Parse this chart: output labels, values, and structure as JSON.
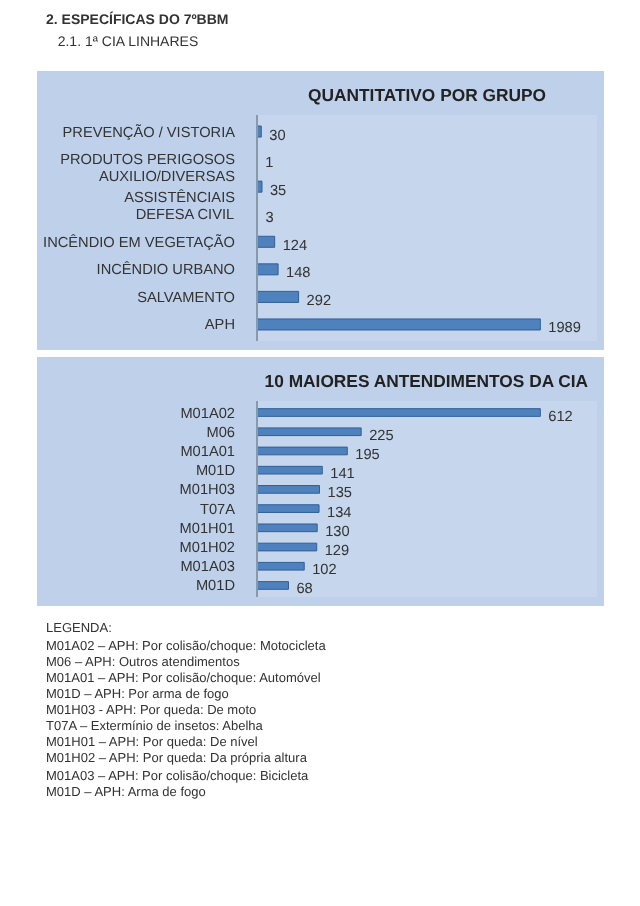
{
  "chart_data": [
    {
      "type": "bar",
      "orientation": "horizontal",
      "title": "QUANTITATIVO POR GRUPO",
      "categories": [
        "PREVENÇÃO / VISTORIA",
        "PRODUTOS PERIGOSOS",
        "AUXILIO/DIVERSAS ASSISTÊNCIAIS",
        "DEFESA CIVIL",
        "INCÊNDIO EM VEGETAÇÃO",
        "INCÊNDIO URBANO",
        "SALVAMENTO",
        "APH"
      ],
      "values": [
        30,
        1,
        35,
        3,
        124,
        148,
        292,
        1989
      ],
      "color": "#4f81bd",
      "data_labels": true,
      "annotations": [
        "2. ESPECÍFICAS DO 7ºBBM",
        "2.1. 1ª CIA LINHARES"
      ]
    },
    {
      "type": "bar",
      "orientation": "horizontal",
      "title": "10 MAIORES ANTENDIMENTOS DA CIA",
      "categories": [
        "M01A02",
        "M06",
        "M01A01",
        "M01D",
        "M01H03",
        "T07A",
        "M01H01",
        "M01H02",
        "M01A03",
        "M01D"
      ],
      "values": [
        612,
        225,
        195,
        141,
        135,
        134,
        130,
        129,
        102,
        68
      ],
      "color": "#4f81bd",
      "data_labels": true,
      "annotations": [
        "LEGENDA:",
        "M01A02 – APH: Por colisão/choque: Motocicleta",
        "M06 – APH: Outros atendimentos",
        "M01A01 – APH: Por colisão/choque: Automóvel",
        "M01D – APH: Por arma de fogo",
        "M01H03 - APH: Por queda: De moto",
        "T07A – Extermínio de insetos: Abelha",
        "M01H01 – APH: Por queda: De nível",
        "M01H02 – APH: Por queda: Da própria altura",
        "M01A03 – APH: Por colisão/choque: Bicicleta",
        "M01D – APH: Arma de fogo"
      ]
    }
  ]
}
